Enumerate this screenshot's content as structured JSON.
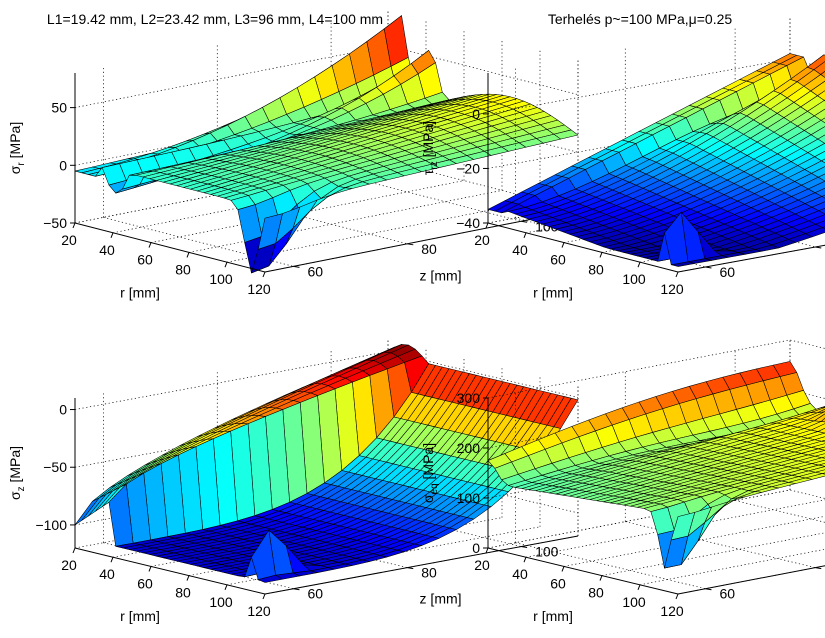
{
  "chart_data": [
    {
      "type": "surface",
      "title": "L1=19.42 mm, L2=23.42 mm, L3=96 mm, L4=100 mm",
      "xlabel": "r [mm]",
      "ylabel": "z [mm]",
      "zlabel_main": "σ",
      "zlabel_sub": "r",
      "zlabel_unit": " [MPa]",
      "r_ticks": [
        "20",
        "40",
        "60",
        "80",
        "100",
        "120"
      ],
      "z_ticks": [
        "60",
        "80",
        "100"
      ],
      "value_ticks": [
        "−50",
        "0",
        "50"
      ],
      "xlim": [
        20,
        120
      ],
      "ylim": [
        55,
        110
      ],
      "zlim": [
        -50,
        80
      ],
      "surface_samples": [
        {
          "r": 20,
          "z": 110,
          "value": 30
        },
        {
          "r": 27,
          "z": 110,
          "value": 80
        },
        {
          "r": 33,
          "z": 110,
          "value": 30
        },
        {
          "r": 45,
          "z": 110,
          "value": 55
        },
        {
          "r": 120,
          "z": 110,
          "value": 20
        },
        {
          "r": 40,
          "z": 70,
          "value": 15
        },
        {
          "r": 112,
          "z": 58,
          "value": -60
        }
      ]
    },
    {
      "type": "surface",
      "title": "Terhelés p~=100 MPa,μ=0.25",
      "xlabel": "r [mm]",
      "ylabel": "z [mm]",
      "zlabel_main": "τ",
      "zlabel_sub": "rz",
      "zlabel_unit": " [MPa]",
      "r_ticks": [
        "20",
        "40",
        "60",
        "80",
        "100",
        "120"
      ],
      "z_ticks": [
        "60",
        "80",
        "100"
      ],
      "value_ticks": [
        "−40",
        "−20",
        "0"
      ],
      "xlim": [
        20,
        120
      ],
      "ylim": [
        55,
        110
      ],
      "zlim": [
        -40,
        15
      ],
      "surface_samples": [
        {
          "r": 20,
          "z": 110,
          "value": 0
        },
        {
          "r": 70,
          "z": 110,
          "value": 12
        },
        {
          "r": 120,
          "z": 110,
          "value": -10
        },
        {
          "r": 30,
          "z": 100,
          "value": -32
        },
        {
          "r": 112,
          "z": 70,
          "value": -28
        },
        {
          "r": 120,
          "z": 58,
          "value": -36
        }
      ]
    },
    {
      "type": "surface",
      "title": "",
      "xlabel": "r [mm]",
      "ylabel": "z [mm]",
      "zlabel_main": "σ",
      "zlabel_sub": "z",
      "zlabel_unit": " [MPa]",
      "r_ticks": [
        "20",
        "40",
        "60",
        "80",
        "100",
        "120"
      ],
      "z_ticks": [
        "60",
        "80",
        "100"
      ],
      "value_ticks": [
        "−100",
        "−50",
        "0"
      ],
      "xlim": [
        20,
        120
      ],
      "ylim": [
        55,
        110
      ],
      "zlim": [
        -120,
        10
      ],
      "surface_samples": [
        {
          "r": 20,
          "z": 110,
          "value": 0
        },
        {
          "r": 28,
          "z": 110,
          "value": 10
        },
        {
          "r": 40,
          "z": 110,
          "value": -2
        },
        {
          "r": 30,
          "z": 90,
          "value": -60
        },
        {
          "r": 70,
          "z": 80,
          "value": -110
        },
        {
          "r": 112,
          "z": 62,
          "value": -75
        },
        {
          "r": 120,
          "z": 60,
          "value": -110
        }
      ]
    },
    {
      "type": "surface",
      "title": "",
      "xlabel": "r [mm]",
      "ylabel": "z [mm]",
      "zlabel_main": "σ",
      "zlabel_sub": "eq",
      "zlabel_unit": " [MPa]",
      "r_ticks": [
        "20",
        "40",
        "60",
        "80",
        "100",
        "120"
      ],
      "z_ticks": [
        "60",
        "80",
        "100"
      ],
      "value_ticks": [
        "0",
        "100",
        "200",
        "300"
      ],
      "xlim": [
        20,
        120
      ],
      "ylim": [
        55,
        110
      ],
      "zlim": [
        0,
        300
      ],
      "surface_samples": [
        {
          "r": 20,
          "z": 110,
          "value": 240
        },
        {
          "r": 35,
          "z": 110,
          "value": 150
        },
        {
          "r": 45,
          "z": 110,
          "value": 210
        },
        {
          "r": 70,
          "z": 110,
          "value": 300
        },
        {
          "r": 120,
          "z": 110,
          "value": 220
        },
        {
          "r": 80,
          "z": 80,
          "value": 180
        },
        {
          "r": 112,
          "z": 58,
          "value": 60
        }
      ]
    }
  ]
}
